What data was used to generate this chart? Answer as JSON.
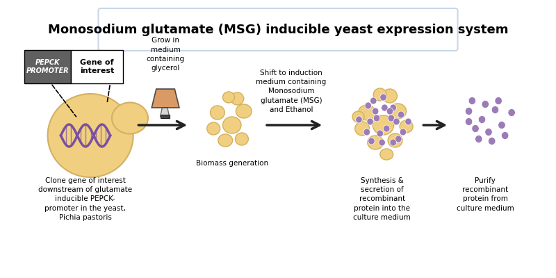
{
  "title": "Monosodium glutamate (MSG) inducible yeast expression system",
  "title_fontsize": 13,
  "bg_color": "#ffffff",
  "title_box_color": "#c8d8e8",
  "yeast_color": "#f0d080",
  "yeast_outline": "#d4b060",
  "biomass_color": "#f0d080",
  "protein_color": "#9b7bb8",
  "label1": "Clone gene of interest\ndownstream of glutamate\ninducible PEPCK-\npromoter in the yeast,\nPichia pastoris",
  "label1_italic": "Pichia pastoris",
  "label2": "Grow in\nmedium\ncontaining\nglycerol",
  "label3": "Biomass generation",
  "label4": "Shift to induction\nmedium containing\nMonosodium\nglutamate (MSG)\nand Ethanol",
  "label5": "Synthesis &\nsecretion of\nrecombinant\nprotein into the\nculture medium",
  "label6": "Purify\nrecombinant\nprotein from\nculture medium",
  "promoter_label": "PEPCK\nPROMOTER",
  "gene_label": "Gene of\ninterest",
  "arrow_color": "#222222",
  "dna_color": "#7b4fa0"
}
